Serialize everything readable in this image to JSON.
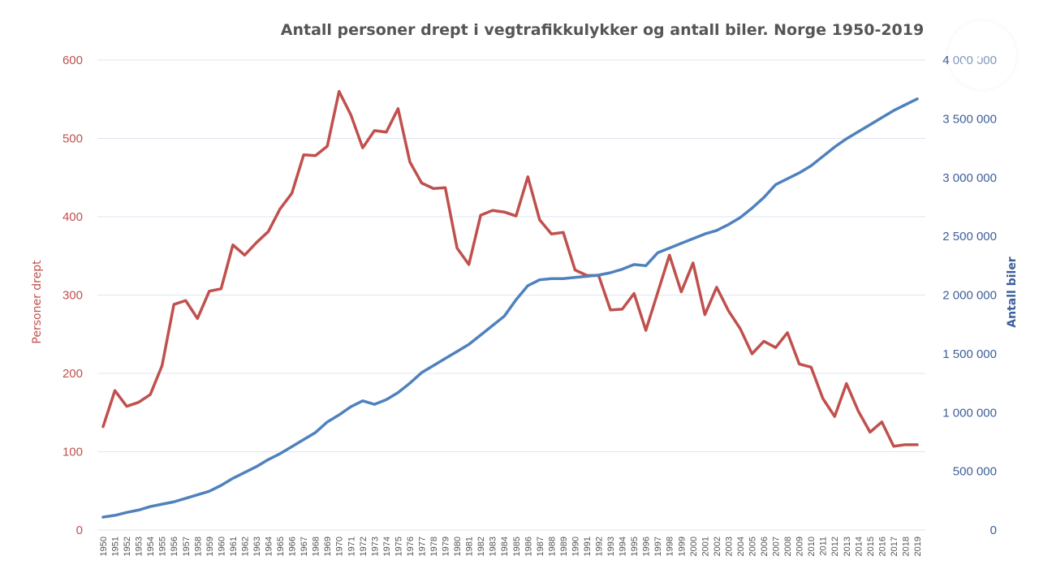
{
  "chart_data": {
    "type": "line",
    "title": "Antall personer drept i vegtrafikkulykker og antall biler. Norge 1950-2019",
    "ylabel_left": "Personer drept",
    "ylabel_right": "Antall biler",
    "ylim_left": [
      0,
      600
    ],
    "ylim_right": [
      0,
      4000000
    ],
    "yticks_left": [
      "0",
      "100",
      "200",
      "300",
      "400",
      "500",
      "600"
    ],
    "yticks_right": [
      "0",
      "500 000",
      "1 000 000",
      "1 500 000",
      "2 000 000",
      "2 500 000",
      "3 000 000",
      "3 500 000",
      "4 000 000"
    ],
    "grid": true,
    "colors": {
      "killed": "#c0504d",
      "cars": "#4f81bd"
    },
    "x": [
      "1950",
      "1951",
      "1952",
      "1953",
      "1954",
      "1955",
      "1956",
      "1957",
      "1958",
      "1959",
      "1960",
      "1961",
      "1962",
      "1963",
      "1964",
      "1965",
      "1966",
      "1967",
      "1968",
      "1969",
      "1970",
      "1971",
      "1972",
      "1973",
      "1974",
      "1975",
      "1976",
      "1977",
      "1978",
      "1979",
      "1980",
      "1981",
      "1982",
      "1983",
      "1984",
      "1985",
      "1986",
      "1987",
      "1988",
      "1989",
      "1990",
      "1991",
      "1992",
      "1993",
      "1994",
      "1995",
      "1996",
      "1997",
      "1998",
      "1999",
      "2000",
      "2001",
      "2002",
      "2003",
      "2004",
      "2005",
      "2006",
      "2007",
      "2008",
      "2009",
      "2010",
      "2011",
      "2012",
      "2013",
      "2014",
      "2015",
      "2016",
      "2017",
      "2018",
      "2019"
    ],
    "series": [
      {
        "name": "Personer drept",
        "axis": "left",
        "values": [
          132,
          178,
          158,
          163,
          173,
          210,
          288,
          293,
          270,
          305,
          308,
          364,
          351,
          367,
          381,
          410,
          430,
          479,
          478,
          490,
          560,
          530,
          488,
          510,
          508,
          538,
          470,
          443,
          436,
          437,
          360,
          339,
          402,
          408,
          406,
          401,
          451,
          396,
          378,
          380,
          332,
          325,
          325,
          281,
          282,
          302,
          255,
          303,
          351,
          304,
          341,
          275,
          310,
          280,
          257,
          225,
          241,
          233,
          252,
          212,
          208,
          168,
          145,
          187,
          152,
          125,
          138,
          107,
          109,
          109
        ]
      },
      {
        "name": "Antall biler",
        "axis": "right",
        "values": [
          110000,
          125000,
          150000,
          170000,
          200000,
          220000,
          240000,
          270000,
          300000,
          330000,
          380000,
          440000,
          490000,
          540000,
          600000,
          650000,
          710000,
          770000,
          830000,
          920000,
          980000,
          1050000,
          1100000,
          1070000,
          1110000,
          1170000,
          1250000,
          1340000,
          1400000,
          1460000,
          1520000,
          1580000,
          1660000,
          1740000,
          1820000,
          1960000,
          2080000,
          2130000,
          2140000,
          2140000,
          2150000,
          2160000,
          2170000,
          2190000,
          2220000,
          2260000,
          2250000,
          2360000,
          2400000,
          2440000,
          2480000,
          2520000,
          2550000,
          2600000,
          2660000,
          2740000,
          2830000,
          2940000,
          2990000,
          3040000,
          3100000,
          3180000,
          3260000,
          3330000,
          3390000,
          3450000,
          3510000,
          3570000,
          3620000,
          3670000
        ]
      }
    ]
  },
  "ui": {
    "expand_icon": "expand-icon"
  }
}
